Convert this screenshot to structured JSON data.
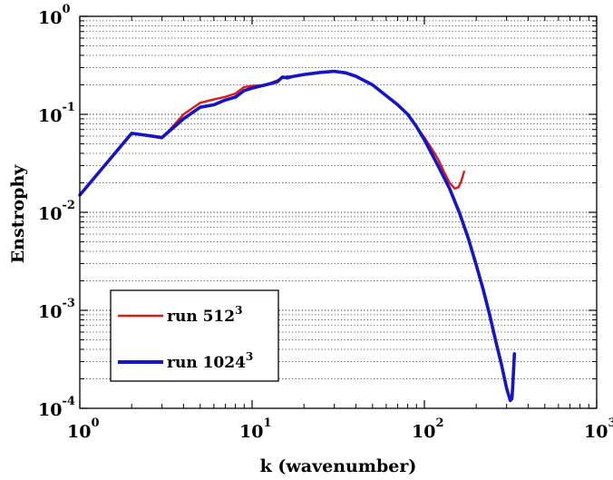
{
  "chart_data": {
    "type": "line",
    "xlabel": "k (wavenumber)",
    "ylabel": "Enstrophy",
    "x_scale": "log",
    "y_scale": "log",
    "xlim": [
      1,
      1000
    ],
    "ylim": [
      0.0001,
      1
    ],
    "y_grid": "dotted",
    "x_grid": false,
    "x_ticks": [
      {
        "value": 1,
        "base": "10",
        "exp": "0"
      },
      {
        "value": 10,
        "base": "10",
        "exp": "1"
      },
      {
        "value": 100,
        "base": "10",
        "exp": "2"
      },
      {
        "value": 1000,
        "base": "10",
        "exp": "3"
      }
    ],
    "y_ticks": [
      {
        "value": 0.0001,
        "base": "10",
        "exp": "-4"
      },
      {
        "value": 0.001,
        "base": "10",
        "exp": "-3"
      },
      {
        "value": 0.01,
        "base": "10",
        "exp": "-2"
      },
      {
        "value": 0.1,
        "base": "10",
        "exp": "-1"
      },
      {
        "value": 1,
        "base": "10",
        "exp": "0"
      }
    ],
    "legend_position": "bottom-left",
    "series": [
      {
        "name": "run 512",
        "name_sup": "3",
        "color": "#e01818",
        "points": [
          [
            1,
            0.015
          ],
          [
            2,
            0.064
          ],
          [
            3,
            0.057
          ],
          [
            4,
            0.1
          ],
          [
            5,
            0.131
          ],
          [
            6,
            0.142
          ],
          [
            7,
            0.151
          ],
          [
            8,
            0.163
          ],
          [
            9,
            0.19
          ],
          [
            10,
            0.195
          ],
          [
            12,
            0.2
          ],
          [
            14,
            0.222
          ],
          [
            15,
            0.235
          ],
          [
            16,
            0.245
          ],
          [
            17,
            0.24
          ],
          [
            20,
            0.255
          ],
          [
            25,
            0.27
          ],
          [
            30,
            0.275
          ],
          [
            35,
            0.262
          ],
          [
            40,
            0.245
          ],
          [
            50,
            0.2
          ],
          [
            60,
            0.155
          ],
          [
            70,
            0.125
          ],
          [
            80,
            0.1
          ],
          [
            90,
            0.075
          ],
          [
            100,
            0.058
          ],
          [
            110,
            0.045
          ],
          [
            120,
            0.035
          ],
          [
            130,
            0.026
          ],
          [
            140,
            0.02
          ],
          [
            150,
            0.0175
          ],
          [
            158,
            0.018
          ],
          [
            164,
            0.021
          ],
          [
            170,
            0.026
          ]
        ]
      },
      {
        "name": "run 1024",
        "name_sup": "3",
        "color": "#1414c8",
        "points": [
          [
            1,
            0.015
          ],
          [
            2,
            0.064
          ],
          [
            3,
            0.058
          ],
          [
            4,
            0.09
          ],
          [
            5,
            0.118
          ],
          [
            6,
            0.125
          ],
          [
            7,
            0.14
          ],
          [
            8,
            0.15
          ],
          [
            9,
            0.175
          ],
          [
            10,
            0.185
          ],
          [
            12,
            0.2
          ],
          [
            14,
            0.215
          ],
          [
            15,
            0.24
          ],
          [
            16,
            0.235
          ],
          [
            17,
            0.242
          ],
          [
            20,
            0.255
          ],
          [
            25,
            0.268
          ],
          [
            30,
            0.275
          ],
          [
            35,
            0.265
          ],
          [
            40,
            0.245
          ],
          [
            50,
            0.2
          ],
          [
            60,
            0.155
          ],
          [
            70,
            0.125
          ],
          [
            80,
            0.1
          ],
          [
            90,
            0.075
          ],
          [
            100,
            0.055
          ],
          [
            120,
            0.03
          ],
          [
            140,
            0.0175
          ],
          [
            160,
            0.0098
          ],
          [
            180,
            0.0054
          ],
          [
            200,
            0.0029
          ],
          [
            220,
            0.0016
          ],
          [
            240,
            0.00088
          ],
          [
            260,
            0.00048
          ],
          [
            280,
            0.00028
          ],
          [
            300,
            0.00016
          ],
          [
            315,
            0.00012
          ],
          [
            322,
            0.000125
          ],
          [
            325,
            0.00016
          ],
          [
            330,
            0.00026
          ],
          [
            333,
            0.00036
          ]
        ]
      }
    ]
  }
}
